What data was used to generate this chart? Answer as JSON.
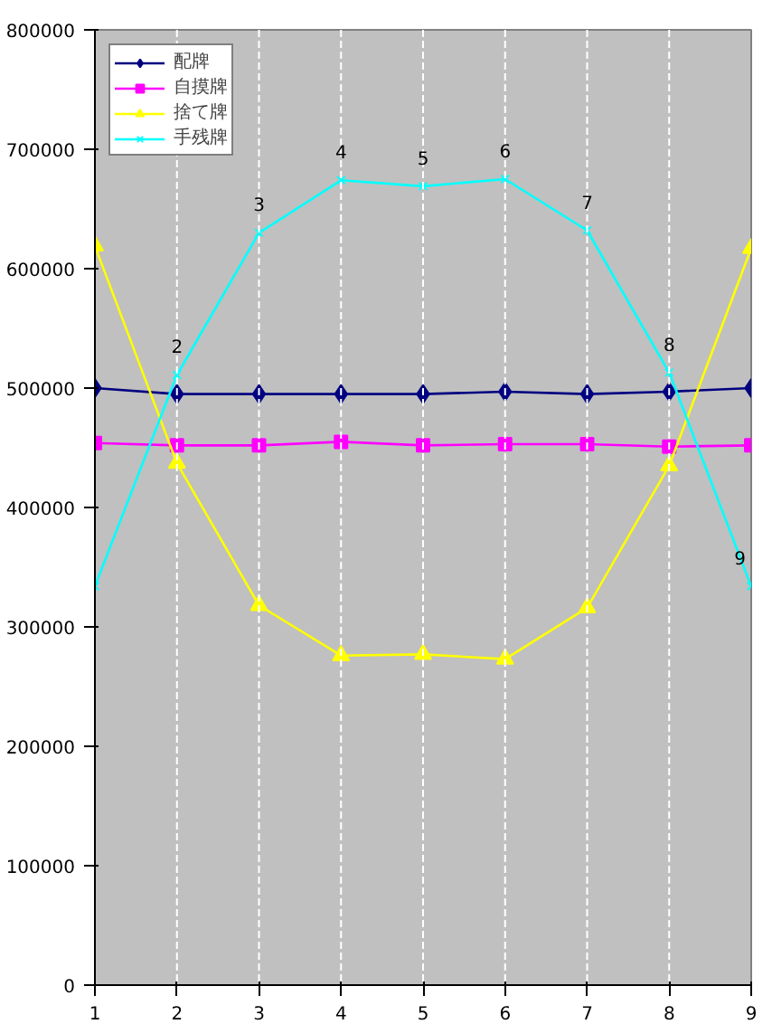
{
  "chart_data": {
    "type": "line",
    "x": [
      1,
      2,
      3,
      4,
      5,
      6,
      7,
      8,
      9
    ],
    "series": [
      {
        "name": "配牌",
        "color": "#000080",
        "marker": "diamond",
        "values": [
          500000,
          495000,
          495000,
          495000,
          495000,
          497000,
          495000,
          497000,
          500000
        ]
      },
      {
        "name": "自摸牌",
        "color": "#ff00ff",
        "marker": "square",
        "values": [
          454000,
          452000,
          452000,
          455000,
          452000,
          453000,
          453000,
          451000,
          452000
        ]
      },
      {
        "name": "捨て牌",
        "color": "#ffff00",
        "marker": "triangle",
        "values": [
          619000,
          437000,
          318000,
          276000,
          277000,
          273000,
          316000,
          435000,
          617000
        ]
      },
      {
        "name": "手残牌",
        "color": "#00ffff",
        "marker": "cross",
        "values": [
          334000,
          511000,
          630000,
          674000,
          669000,
          675000,
          632000,
          513000,
          334000
        ]
      }
    ],
    "xlim": [
      1,
      9
    ],
    "xticks": [
      1,
      2,
      3,
      4,
      5,
      6,
      7,
      8,
      9
    ],
    "ylim": [
      0,
      800000
    ],
    "yticks": [
      0,
      100000,
      200000,
      300000,
      400000,
      500000,
      600000,
      700000,
      800000
    ],
    "ref_lines": [
      {
        "axis": "x",
        "value": 2,
        "color": "#ffffff",
        "line_style": "dashed"
      },
      {
        "axis": "x",
        "value": 3,
        "color": "#ffffff",
        "line_style": "dashed"
      },
      {
        "axis": "x",
        "value": 4,
        "color": "#ffffff",
        "line_style": "dashed"
      },
      {
        "axis": "x",
        "value": 5,
        "color": "#ffffff",
        "line_style": "dashed"
      },
      {
        "axis": "x",
        "value": 6,
        "color": "#ffffff",
        "line_style": "dashed"
      },
      {
        "axis": "x",
        "value": 7,
        "color": "#ffffff",
        "line_style": "dashed"
      },
      {
        "axis": "x",
        "value": 8,
        "color": "#ffffff",
        "line_style": "dashed"
      }
    ],
    "annotations": [
      {
        "text": "2",
        "x": 2,
        "y": 511000
      },
      {
        "text": "3",
        "x": 3,
        "y": 630000
      },
      {
        "text": "4",
        "x": 4,
        "y": 674000
      },
      {
        "text": "5",
        "x": 5,
        "y": 669000
      },
      {
        "text": "6",
        "x": 6,
        "y": 675000
      },
      {
        "text": "7",
        "x": 7,
        "y": 632000
      },
      {
        "text": "8",
        "x": 8,
        "y": 513000
      },
      {
        "text": "9",
        "x": 9,
        "y": 334000
      }
    ],
    "grid": false,
    "legend": "top left",
    "line_style": "solid"
  }
}
